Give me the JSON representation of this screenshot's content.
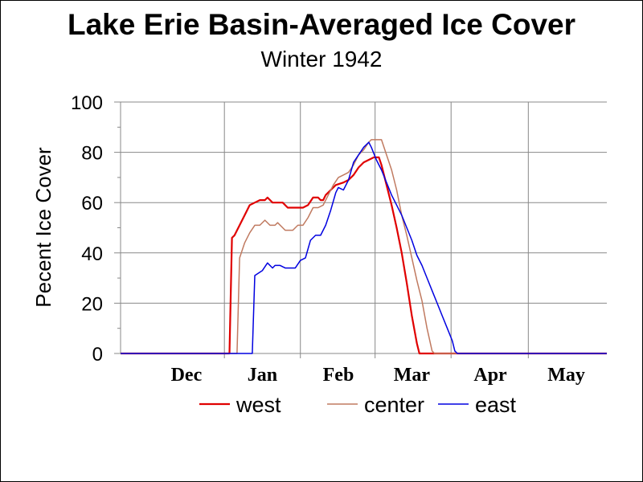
{
  "chart_data": {
    "type": "line",
    "title": "Lake Erie Basin-Averaged Ice Cover",
    "subtitle": "Winter 1942",
    "ylabel": "Pecent Ice Cover",
    "xlabel": "",
    "ylim": [
      0,
      100
    ],
    "yticks": [
      0,
      20,
      40,
      60,
      80,
      100
    ],
    "xlim": [
      "1941-11-20",
      "1942-05-31"
    ],
    "xtick_labels": [
      {
        "label": "Dec",
        "date": "1941-12-16"
      },
      {
        "label": "Jan",
        "date": "1942-01-15"
      },
      {
        "label": "Feb",
        "date": "1942-02-14"
      },
      {
        "label": "Mar",
        "date": "1942-03-15"
      },
      {
        "label": "Apr",
        "date": "1942-04-15"
      },
      {
        "label": "May",
        "date": "1942-05-15"
      }
    ],
    "grid": true,
    "legend": "bottom",
    "series": [
      {
        "name": "west",
        "color": "#e00000",
        "points": [
          [
            "1941-11-20",
            0
          ],
          [
            "1942-01-02",
            0
          ],
          [
            "1942-01-03",
            46
          ],
          [
            "1942-01-04",
            47
          ],
          [
            "1942-01-06",
            51
          ],
          [
            "1942-01-08",
            55
          ],
          [
            "1942-01-10",
            59
          ],
          [
            "1942-01-12",
            60
          ],
          [
            "1942-01-14",
            61
          ],
          [
            "1942-01-16",
            61
          ],
          [
            "1942-01-17",
            62
          ],
          [
            "1942-01-19",
            60
          ],
          [
            "1942-01-21",
            60
          ],
          [
            "1942-01-23",
            60
          ],
          [
            "1942-01-25",
            58
          ],
          [
            "1942-01-27",
            58
          ],
          [
            "1942-01-31",
            58
          ],
          [
            "1942-02-02",
            59
          ],
          [
            "1942-02-04",
            62
          ],
          [
            "1942-02-06",
            62
          ],
          [
            "1942-02-07",
            61
          ],
          [
            "1942-02-08",
            61
          ],
          [
            "1942-02-09",
            63
          ],
          [
            "1942-02-11",
            65
          ],
          [
            "1942-02-13",
            67
          ],
          [
            "1942-02-16",
            68
          ],
          [
            "1942-02-18",
            69
          ],
          [
            "1942-02-20",
            71
          ],
          [
            "1942-02-22",
            74
          ],
          [
            "1942-02-24",
            76
          ],
          [
            "1942-02-26",
            77
          ],
          [
            "1942-02-28",
            78
          ],
          [
            "1942-03-02",
            78
          ],
          [
            "1942-03-03",
            75
          ],
          [
            "1942-03-05",
            67
          ],
          [
            "1942-03-07",
            59
          ],
          [
            "1942-03-09",
            50
          ],
          [
            "1942-03-11",
            40
          ],
          [
            "1942-03-13",
            28
          ],
          [
            "1942-03-15",
            15
          ],
          [
            "1942-03-17",
            4
          ],
          [
            "1942-03-18",
            0
          ],
          [
            "1942-05-31",
            0
          ]
        ]
      },
      {
        "name": "center",
        "color": "#c07a60",
        "points": [
          [
            "1941-11-20",
            0
          ],
          [
            "1942-01-05",
            0
          ],
          [
            "1942-01-06",
            38
          ],
          [
            "1942-01-08",
            44
          ],
          [
            "1942-01-10",
            48
          ],
          [
            "1942-01-12",
            51
          ],
          [
            "1942-01-14",
            51
          ],
          [
            "1942-01-16",
            53
          ],
          [
            "1942-01-18",
            51
          ],
          [
            "1942-01-20",
            51
          ],
          [
            "1942-01-21",
            52
          ],
          [
            "1942-01-23",
            50
          ],
          [
            "1942-01-24",
            49
          ],
          [
            "1942-01-27",
            49
          ],
          [
            "1942-01-29",
            51
          ],
          [
            "1942-01-31",
            51
          ],
          [
            "1942-02-02",
            54
          ],
          [
            "1942-02-04",
            58
          ],
          [
            "1942-02-06",
            58
          ],
          [
            "1942-02-08",
            59
          ],
          [
            "1942-02-10",
            63
          ],
          [
            "1942-02-12",
            67
          ],
          [
            "1942-02-14",
            70
          ],
          [
            "1942-02-16",
            71
          ],
          [
            "1942-02-18",
            72
          ],
          [
            "1942-02-20",
            75
          ],
          [
            "1942-02-22",
            79
          ],
          [
            "1942-02-24",
            81
          ],
          [
            "1942-02-26",
            84
          ],
          [
            "1942-02-27",
            85
          ],
          [
            "1942-03-03",
            85
          ],
          [
            "1942-03-05",
            79
          ],
          [
            "1942-03-07",
            73
          ],
          [
            "1942-03-09",
            65
          ],
          [
            "1942-03-11",
            55
          ],
          [
            "1942-03-13",
            47
          ],
          [
            "1942-03-15",
            38
          ],
          [
            "1942-03-17",
            29
          ],
          [
            "1942-03-19",
            21
          ],
          [
            "1942-03-21",
            10
          ],
          [
            "1942-03-23",
            1
          ],
          [
            "1942-03-24",
            0
          ],
          [
            "1942-05-31",
            0
          ]
        ]
      },
      {
        "name": "east",
        "color": "#0000e0",
        "points": [
          [
            "1941-11-20",
            0
          ],
          [
            "1942-01-11",
            0
          ],
          [
            "1942-01-12",
            31
          ],
          [
            "1942-01-15",
            33
          ],
          [
            "1942-01-17",
            36
          ],
          [
            "1942-01-19",
            34
          ],
          [
            "1942-01-20",
            35
          ],
          [
            "1942-01-22",
            35
          ],
          [
            "1942-01-24",
            34
          ],
          [
            "1942-01-28",
            34
          ],
          [
            "1942-01-30",
            37
          ],
          [
            "1942-02-01",
            38
          ],
          [
            "1942-02-03",
            45
          ],
          [
            "1942-02-05",
            47
          ],
          [
            "1942-02-07",
            47
          ],
          [
            "1942-02-09",
            51
          ],
          [
            "1942-02-11",
            57
          ],
          [
            "1942-02-13",
            64
          ],
          [
            "1942-02-14",
            66
          ],
          [
            "1942-02-16",
            65
          ],
          [
            "1942-02-18",
            69
          ],
          [
            "1942-02-20",
            76
          ],
          [
            "1942-02-22",
            79
          ],
          [
            "1942-02-24",
            82
          ],
          [
            "1942-02-26",
            84
          ],
          [
            "1942-02-27",
            82
          ],
          [
            "1942-03-01",
            77
          ],
          [
            "1942-03-03",
            73
          ],
          [
            "1942-03-05",
            68
          ],
          [
            "1942-03-07",
            63
          ],
          [
            "1942-03-09",
            59
          ],
          [
            "1942-03-11",
            55
          ],
          [
            "1942-03-13",
            50
          ],
          [
            "1942-03-15",
            45
          ],
          [
            "1942-03-17",
            39
          ],
          [
            "1942-03-19",
            35
          ],
          [
            "1942-03-21",
            30
          ],
          [
            "1942-03-23",
            25
          ],
          [
            "1942-03-25",
            20
          ],
          [
            "1942-03-27",
            15
          ],
          [
            "1942-03-29",
            10
          ],
          [
            "1942-03-31",
            5
          ],
          [
            "1942-04-01",
            1
          ],
          [
            "1942-04-02",
            0
          ],
          [
            "1942-05-31",
            0
          ]
        ]
      }
    ]
  }
}
